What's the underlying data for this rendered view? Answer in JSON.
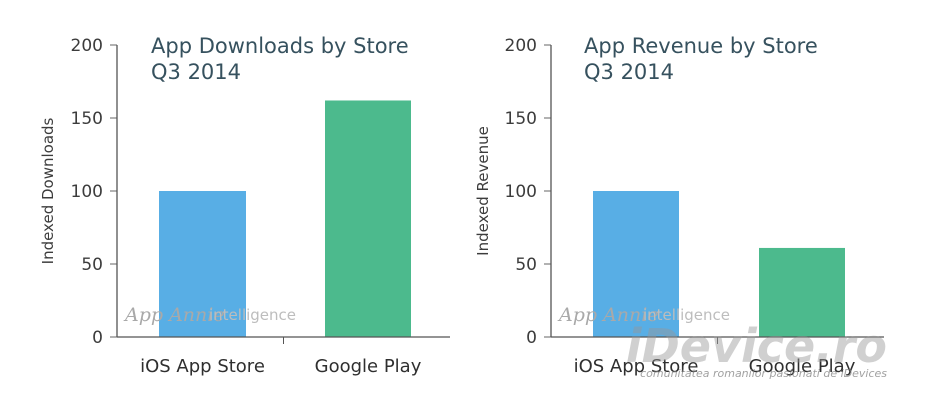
{
  "chart_data": [
    {
      "type": "bar",
      "title": "App Downloads by Store",
      "subtitle": "Q3 2014",
      "xlabel": "",
      "ylabel": "Indexed Downloads",
      "ylim": [
        0,
        200
      ],
      "yticks": [
        0,
        50,
        100,
        150,
        200
      ],
      "categories": [
        "iOS App Store",
        "Google Play"
      ],
      "values": [
        100,
        162
      ],
      "colors": [
        "#58aee5",
        "#4cba8d"
      ],
      "grid": false,
      "legend": "none",
      "watermark": {
        "brand": "App Annie",
        "suffix": "intelligence"
      }
    },
    {
      "type": "bar",
      "title": "App Revenue by Store",
      "subtitle": "Q3 2014",
      "xlabel": "",
      "ylabel": "Indexed Revenue",
      "ylim": [
        0,
        200
      ],
      "yticks": [
        0,
        50,
        100,
        150,
        200
      ],
      "categories": [
        "iOS App Store",
        "Google Play"
      ],
      "values": [
        100,
        61
      ],
      "colors": [
        "#58aee5",
        "#4cba8d"
      ],
      "grid": false,
      "legend": "none",
      "watermark": {
        "brand": "App Annie",
        "suffix": "intelligence"
      }
    }
  ],
  "site_watermark": {
    "text": "iDevice.ro",
    "tagline": "comunitatea romanilor pasionati de iDevices"
  }
}
